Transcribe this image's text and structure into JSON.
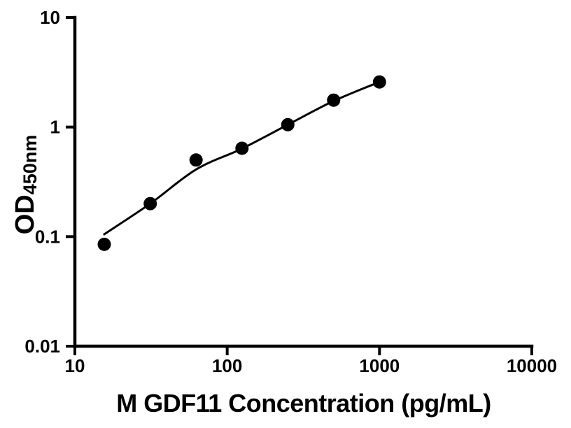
{
  "figure": {
    "background_color": "#ffffff",
    "axis_color": "#000000",
    "marker_color": "#000000",
    "curve_color": "#000000"
  },
  "chart_data": {
    "type": "scatter",
    "title": "",
    "xlabel": "M GDF11 Concentration (pg/mL)",
    "ylabel_main": "OD",
    "ylabel_sub": "450nm",
    "x_scale": "log",
    "y_scale": "log",
    "xlim": [
      10,
      10000
    ],
    "ylim": [
      0.01,
      10
    ],
    "grid": false,
    "legend": "none",
    "x_ticks": [
      {
        "value": 10,
        "label": "10"
      },
      {
        "value": 100,
        "label": "100"
      },
      {
        "value": 1000,
        "label": "1000"
      },
      {
        "value": 10000,
        "label": "10000"
      }
    ],
    "y_ticks": [
      {
        "value": 10,
        "label": "10"
      },
      {
        "value": 1,
        "label": "1"
      },
      {
        "value": 0.1,
        "label": "0.1"
      },
      {
        "value": 0.01,
        "label": "0.01"
      }
    ],
    "series": [
      {
        "name": "standard-points",
        "render": "scatter",
        "points": [
          {
            "x": 15.6,
            "y": 0.085
          },
          {
            "x": 31.25,
            "y": 0.2
          },
          {
            "x": 62.5,
            "y": 0.5
          },
          {
            "x": 125,
            "y": 0.64
          },
          {
            "x": 250,
            "y": 1.05
          },
          {
            "x": 500,
            "y": 1.76
          },
          {
            "x": 1000,
            "y": 2.58
          }
        ]
      },
      {
        "name": "fit-curve",
        "render": "line",
        "points": [
          {
            "x": 15.4,
            "y": 0.104
          },
          {
            "x": 31.25,
            "y": 0.2
          },
          {
            "x": 62.5,
            "y": 0.41
          },
          {
            "x": 125,
            "y": 0.635
          },
          {
            "x": 250,
            "y": 1.05
          },
          {
            "x": 500,
            "y": 1.73
          },
          {
            "x": 1000,
            "y": 2.58
          }
        ]
      }
    ]
  }
}
